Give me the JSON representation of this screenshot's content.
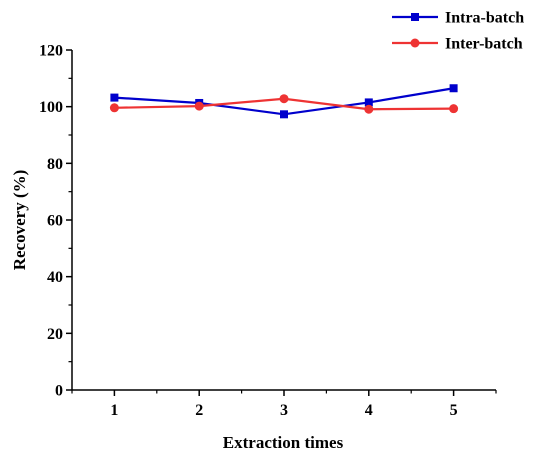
{
  "chart_data": {
    "type": "line",
    "x": [
      1,
      2,
      3,
      4,
      5
    ],
    "xticks": [
      "1",
      "2",
      "3",
      "4",
      "5"
    ],
    "yticks": [
      "0",
      "20",
      "40",
      "60",
      "80",
      "100",
      "120"
    ],
    "xlabel": "Extraction times",
    "ylabel": "Recovery (%)",
    "xlim": [
      0.5,
      5.5
    ],
    "ylim": [
      0,
      120
    ],
    "grid": false,
    "legend_position": "top-right",
    "series": [
      {
        "name": "Intra-batch",
        "values": [
          103.2,
          101.3,
          97.3,
          101.5,
          106.5
        ],
        "color": "#0000cc",
        "marker": "square"
      },
      {
        "name": "Inter-batch",
        "values": [
          99.6,
          100.2,
          102.8,
          99.1,
          99.3
        ],
        "color": "#ee3333",
        "marker": "circle"
      }
    ]
  }
}
